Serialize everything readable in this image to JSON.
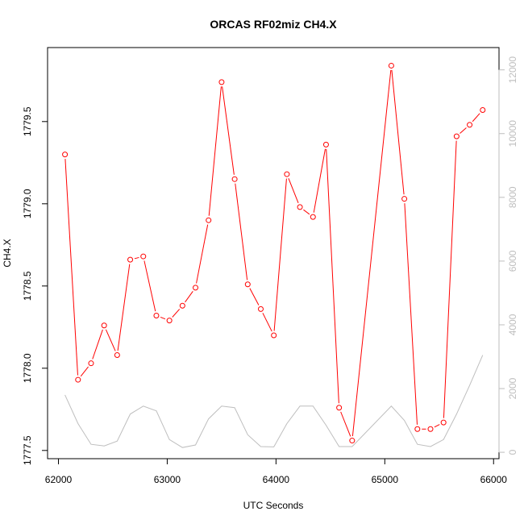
{
  "chart_data": {
    "type": "line",
    "title": "ORCAS RF02miz CH4.X",
    "xlabel": "UTC Seconds",
    "ylabel": "CH4.X",
    "xlim": [
      61900,
      66050
    ],
    "ylim": [
      1777.45,
      1779.95
    ],
    "y2lim": [
      -200,
      12700
    ],
    "x_ticks": [
      62000,
      63000,
      64000,
      65000,
      66000
    ],
    "y_ticks": [
      1777.5,
      1778.0,
      1778.5,
      1779.0,
      1779.5
    ],
    "y2_ticks": [
      0,
      2000,
      4000,
      6000,
      8000,
      10000,
      12000
    ],
    "x_tick_labels": [
      "62000",
      "63000",
      "64000",
      "65000",
      "66000"
    ],
    "y_tick_labels": [
      "1777.5",
      "1778.0",
      "1778.5",
      "1779.0",
      "1779.5"
    ],
    "y2_tick_labels": [
      "0",
      "2000",
      "4000",
      "6000",
      "8000",
      "10000",
      "12000"
    ],
    "series": [
      {
        "axis": "left",
        "color": "#ff0000",
        "style": "line-with-open-circles",
        "x": [
          62060,
          62180,
          62300,
          62420,
          62540,
          62660,
          62780,
          62900,
          63020,
          63140,
          63260,
          63380,
          63500,
          63620,
          63740,
          63860,
          63980,
          64100,
          64220,
          64340,
          64460,
          64580,
          64700,
          65060,
          65180,
          65300,
          65420,
          65540,
          65660,
          65780,
          65900
        ],
        "values": [
          1779.3,
          1777.93,
          1778.03,
          1778.26,
          1778.08,
          1778.66,
          1778.68,
          1778.32,
          1778.29,
          1778.38,
          1778.49,
          1778.9,
          1779.74,
          1779.15,
          1778.51,
          1778.36,
          1778.2,
          1779.18,
          1778.98,
          1778.92,
          1779.36,
          1777.76,
          1777.56,
          1779.84,
          1779.03,
          1777.63,
          1777.63,
          1777.67,
          1779.41,
          1779.48,
          1779.57
        ]
      },
      {
        "axis": "right",
        "color": "#bebebe",
        "style": "line",
        "x": [
          62060,
          62180,
          62300,
          62420,
          62540,
          62660,
          62780,
          62900,
          63020,
          63140,
          63260,
          63380,
          63500,
          63620,
          63740,
          63860,
          63980,
          64100,
          64220,
          64340,
          64460,
          64580,
          64700,
          65060,
          65180,
          65300,
          65420,
          65540,
          65660,
          65780,
          65900
        ],
        "values": [
          1800,
          900,
          250,
          200,
          350,
          1200,
          1450,
          1300,
          400,
          150,
          230,
          1050,
          1450,
          1400,
          550,
          180,
          170,
          900,
          1450,
          1450,
          850,
          180,
          180,
          1450,
          1000,
          250,
          180,
          400,
          1200,
          2100,
          3050
        ]
      }
    ]
  }
}
